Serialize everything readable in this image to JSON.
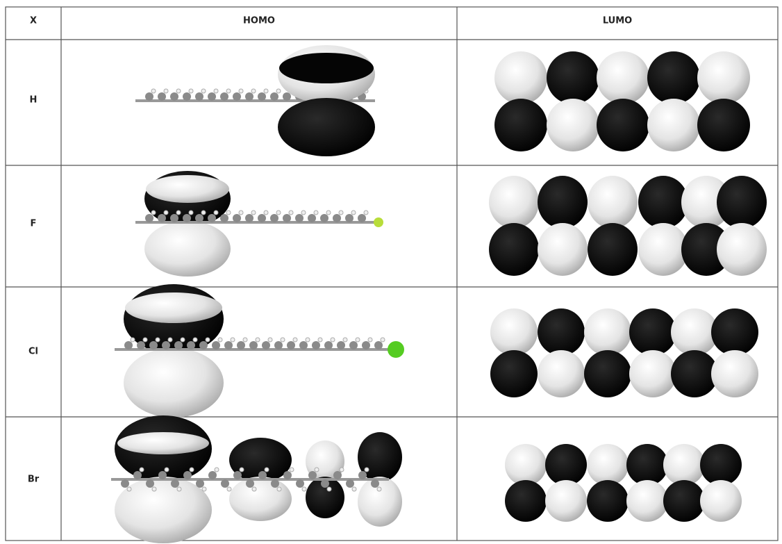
{
  "table": {
    "header": [
      "X",
      "HOMO",
      "LUMO"
    ],
    "rows": [
      [
        "H"
      ],
      [
        "F"
      ],
      [
        "Cl"
      ],
      [
        "Br"
      ]
    ]
  }
}
